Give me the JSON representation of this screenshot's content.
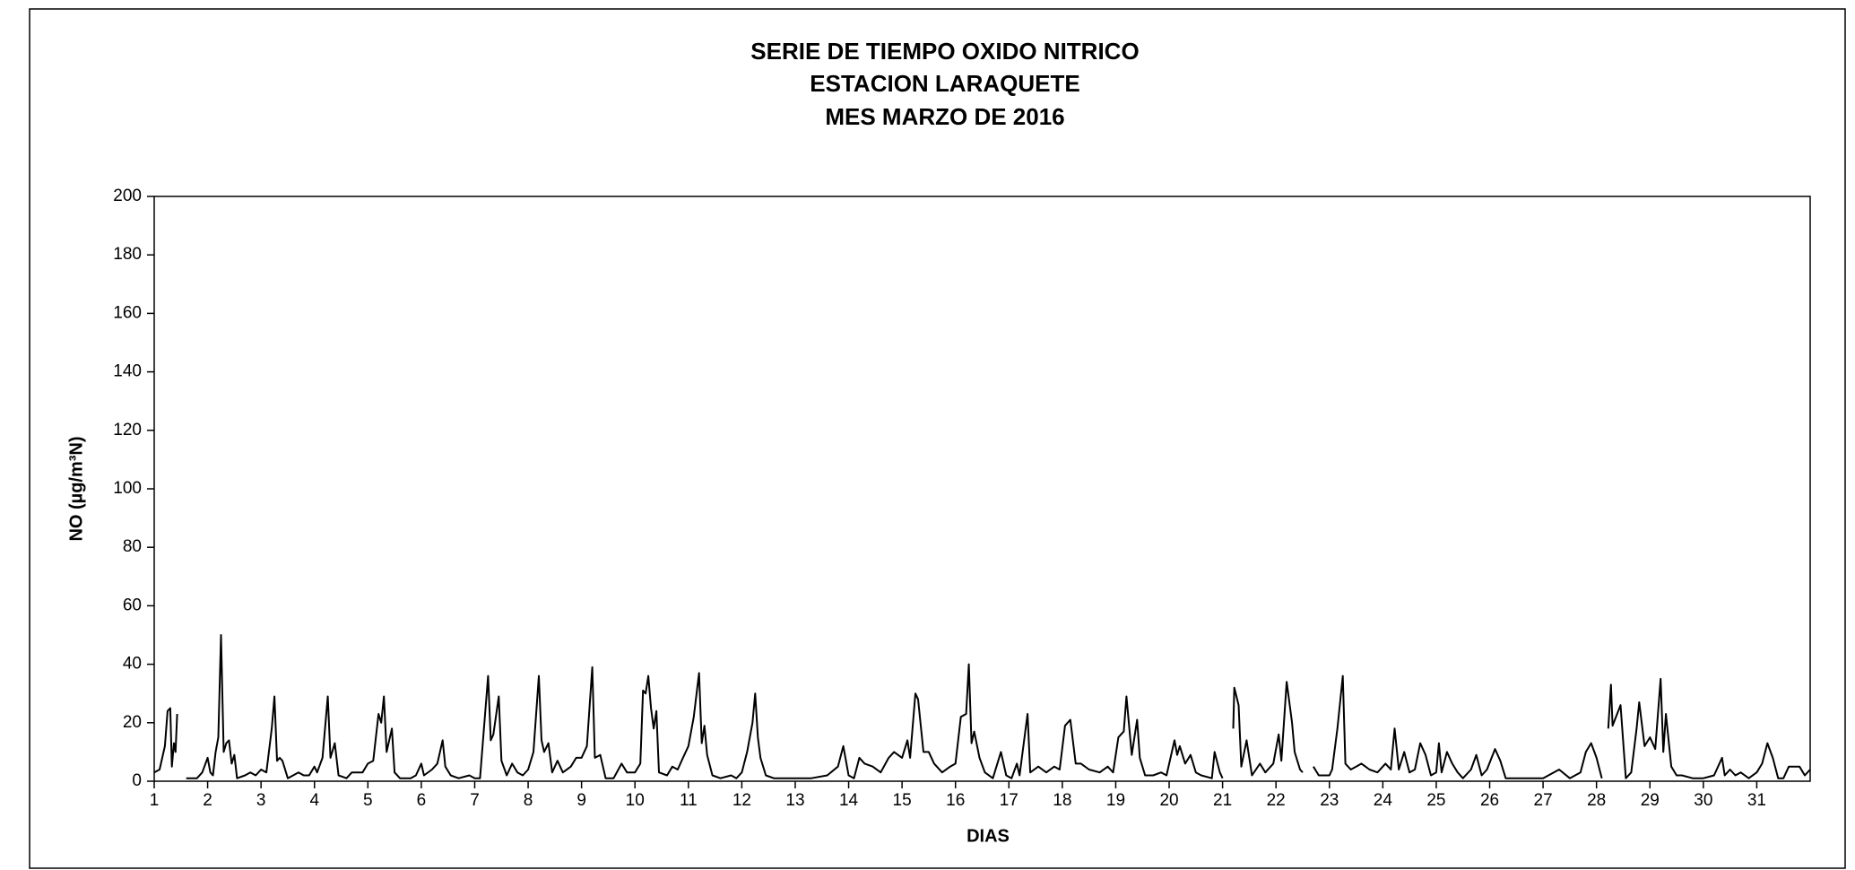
{
  "chart_data": {
    "type": "line",
    "title": [
      "SERIE DE TIEMPO OXIDO NITRICO",
      "ESTACION LARAQUETE",
      "MES MARZO  DE 2016"
    ],
    "x_label": "DIAS",
    "y_label": "NO (µg/m³N)",
    "xlim": [
      1,
      32
    ],
    "xticks": [
      1,
      2,
      3,
      4,
      5,
      6,
      7,
      8,
      9,
      10,
      11,
      12,
      13,
      14,
      15,
      16,
      17,
      18,
      19,
      20,
      21,
      22,
      23,
      24,
      25,
      26,
      27,
      28,
      29,
      30,
      31
    ],
    "ylim": [
      0,
      200
    ],
    "yticks": [
      0,
      20,
      40,
      60,
      80,
      100,
      120,
      140,
      160,
      180,
      200
    ],
    "grid": false,
    "x": [
      1.0,
      1.1,
      1.2,
      1.25,
      1.3,
      1.33,
      1.37,
      1.4,
      1.43,
      1.46,
      1.6,
      1.8,
      1.9,
      2.0,
      2.05,
      2.1,
      2.15,
      2.2,
      2.25,
      2.3,
      2.35,
      2.4,
      2.45,
      2.5,
      2.55,
      2.7,
      2.8,
      2.9,
      3.0,
      3.1,
      3.2,
      3.25,
      3.3,
      3.35,
      3.4,
      3.5,
      3.7,
      3.8,
      3.9,
      4.0,
      4.05,
      4.15,
      4.25,
      4.3,
      4.38,
      4.45,
      4.6,
      4.7,
      4.8,
      4.9,
      5.0,
      5.1,
      5.2,
      5.25,
      5.3,
      5.35,
      5.45,
      5.5,
      5.6,
      5.8,
      5.9,
      6.0,
      6.05,
      6.2,
      6.3,
      6.4,
      6.45,
      6.55,
      6.7,
      6.9,
      7.0,
      7.1,
      7.25,
      7.3,
      7.35,
      7.45,
      7.5,
      7.6,
      7.7,
      7.8,
      7.9,
      8.0,
      8.1,
      8.2,
      8.25,
      8.3,
      8.38,
      8.45,
      8.55,
      8.65,
      8.8,
      8.9,
      9.0,
      9.1,
      9.2,
      9.25,
      9.35,
      9.45,
      9.6,
      9.75,
      9.85,
      10.0,
      10.1,
      10.15,
      10.2,
      10.25,
      10.3,
      10.35,
      10.4,
      10.45,
      10.6,
      10.7,
      10.8,
      10.9,
      11.0,
      11.1,
      11.2,
      11.25,
      11.3,
      11.35,
      11.45,
      11.6,
      11.8,
      11.9,
      12.0,
      12.1,
      12.2,
      12.25,
      12.3,
      12.35,
      12.45,
      12.6,
      13.0,
      13.3,
      13.6,
      13.8,
      13.9,
      14.0,
      14.1,
      14.2,
      14.3,
      14.45,
      14.6,
      14.75,
      14.85,
      15.0,
      15.1,
      15.15,
      15.25,
      15.3,
      15.4,
      15.5,
      15.6,
      15.75,
      15.9,
      16.0,
      16.1,
      16.2,
      16.25,
      16.3,
      16.35,
      16.45,
      16.55,
      16.7,
      16.85,
      16.95,
      17.05,
      17.15,
      17.2,
      17.35,
      17.4,
      17.55,
      17.7,
      17.85,
      17.95,
      18.05,
      18.15,
      18.25,
      18.35,
      18.5,
      18.7,
      18.85,
      18.95,
      19.05,
      19.15,
      19.2,
      19.3,
      19.4,
      19.45,
      19.55,
      19.7,
      19.85,
      19.95,
      20.1,
      20.15,
      20.2,
      20.3,
      20.4,
      20.5,
      20.6,
      20.8,
      20.85,
      20.95,
      21.0,
      21.1,
      21.2,
      21.22,
      21.3,
      21.35,
      21.45,
      21.55,
      21.7,
      21.8,
      21.95,
      22.05,
      22.1,
      22.2,
      22.3,
      22.35,
      22.45,
      22.5,
      22.6,
      22.7,
      22.8,
      23.0,
      23.05,
      23.15,
      23.25,
      23.3,
      23.4,
      23.5,
      23.6,
      23.75,
      23.9,
      24.05,
      24.15,
      24.22,
      24.3,
      24.4,
      24.5,
      24.6,
      24.7,
      24.8,
      24.9,
      25.0,
      25.05,
      25.1,
      25.2,
      25.3,
      25.4,
      25.5,
      25.65,
      25.75,
      25.85,
      25.95,
      26.1,
      26.2,
      26.3,
      26.6,
      26.8,
      27.0,
      27.3,
      27.5,
      27.7,
      27.8,
      27.9,
      28.0,
      28.1,
      28.15,
      28.22,
      28.27,
      28.3,
      28.45,
      28.55,
      28.65,
      28.75,
      28.8,
      28.9,
      29.0,
      29.1,
      29.2,
      29.25,
      29.3,
      29.4,
      29.5,
      29.6,
      29.8,
      30.0,
      30.2,
      30.35,
      30.4,
      30.5,
      30.6,
      30.7,
      30.85,
      31.0,
      31.1,
      31.2,
      31.3,
      31.4,
      31.5,
      31.6,
      31.8,
      31.9,
      32.0
    ],
    "series": [
      {
        "name": "NO",
        "color": "#000000",
        "values": [
          3,
          4,
          12,
          24,
          25,
          5,
          13,
          10,
          23,
          null,
          1,
          1,
          3,
          8,
          3,
          2,
          10,
          15,
          50,
          10,
          13,
          14,
          6,
          9,
          1,
          2,
          3,
          2,
          4,
          3,
          18,
          29,
          7,
          8,
          7,
          1,
          3,
          2,
          2,
          5,
          3,
          8,
          29,
          8,
          13,
          2,
          1,
          3,
          3,
          3,
          6,
          7,
          23,
          20,
          29,
          10,
          18,
          3,
          1,
          1,
          2,
          6,
          2,
          4,
          6,
          14,
          5,
          2,
          1,
          2,
          1,
          1,
          36,
          14,
          16,
          29,
          7,
          2,
          6,
          3,
          2,
          4,
          10,
          36,
          14,
          10,
          13,
          3,
          7,
          3,
          5,
          8,
          8,
          12,
          39,
          8,
          9,
          1,
          1,
          6,
          3,
          3,
          6,
          31,
          30,
          36,
          25,
          18,
          24,
          3,
          2,
          5,
          4,
          8,
          12,
          22,
          37,
          13,
          19,
          9,
          2,
          1,
          2,
          1,
          3,
          10,
          20,
          30,
          15,
          8,
          2,
          1,
          1,
          1,
          2,
          5,
          12,
          2,
          1,
          8,
          6,
          5,
          3,
          8,
          10,
          8,
          14,
          8,
          30,
          28,
          10,
          10,
          6,
          3,
          5,
          6,
          22,
          23,
          40,
          13,
          17,
          8,
          3,
          1,
          10,
          2,
          1,
          6,
          2,
          23,
          3,
          5,
          3,
          5,
          4,
          19,
          21,
          6,
          6,
          4,
          3,
          5,
          3,
          15,
          17,
          29,
          9,
          21,
          8,
          2,
          2,
          3,
          2,
          14,
          9,
          12,
          6,
          9,
          3,
          2,
          1,
          10,
          3,
          1,
          null,
          18,
          32,
          26,
          5,
          14,
          2,
          6,
          3,
          6,
          16,
          7,
          34,
          20,
          10,
          4,
          3,
          null,
          5,
          2,
          2,
          4,
          18,
          36,
          6,
          4,
          5,
          6,
          4,
          3,
          6,
          4,
          18,
          4,
          10,
          3,
          4,
          13,
          9,
          2,
          3,
          13,
          3,
          10,
          6,
          3,
          1,
          4,
          9,
          2,
          4,
          11,
          7,
          1,
          1,
          1,
          1,
          4,
          1,
          3,
          10,
          13,
          8,
          1,
          null,
          18,
          33,
          19,
          26,
          1,
          3,
          18,
          27,
          12,
          15,
          11,
          35,
          10,
          23,
          5,
          2,
          2,
          1,
          1,
          2,
          8,
          2,
          4,
          2,
          3,
          1,
          3,
          6,
          13,
          8,
          1,
          1,
          5,
          5,
          2,
          4
        ]
      }
    ]
  }
}
